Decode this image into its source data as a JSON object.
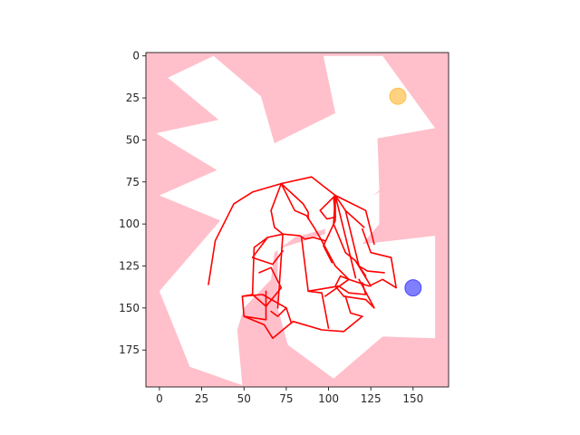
{
  "chart_data": {
    "type": "scatter",
    "title": "",
    "xlabel": "",
    "ylabel": "",
    "xlim": [
      -8,
      171
    ],
    "ylim": [
      197,
      -2
    ],
    "y_inverted": true,
    "x_ticks": [
      0,
      25,
      50,
      75,
      100,
      125,
      150
    ],
    "y_ticks": [
      0,
      25,
      50,
      75,
      100,
      125,
      150,
      175
    ],
    "grid": false,
    "colors": {
      "obstacle": "#ffc0cb",
      "free_space": "#ffffff",
      "path": "#ff0000",
      "start_marker": "#ffa500",
      "goal_marker": "#0000ff"
    },
    "free_region": [
      [
        32,
        0
      ],
      [
        5,
        13
      ],
      [
        35,
        38
      ],
      [
        -2,
        46
      ],
      [
        34,
        68
      ],
      [
        0,
        83
      ],
      [
        36,
        98
      ],
      [
        0,
        140
      ],
      [
        18,
        185
      ],
      [
        49,
        196
      ],
      [
        46,
        163
      ],
      [
        50,
        150
      ],
      [
        66,
        133
      ],
      [
        68,
        117
      ],
      [
        80,
        108
      ],
      [
        98,
        103
      ],
      [
        110,
        95
      ],
      [
        123,
        86
      ],
      [
        130,
        80
      ],
      [
        129,
        49
      ],
      [
        163,
        43
      ],
      [
        132,
        0
      ],
      [
        97,
        0
      ],
      [
        104,
        34
      ],
      [
        68,
        52
      ],
      [
        60,
        24
      ]
    ],
    "free_region_lower": [
      [
        70,
        115
      ],
      [
        98,
        106
      ],
      [
        120,
        112
      ],
      [
        163,
        107
      ],
      [
        163,
        168
      ],
      [
        132,
        167
      ],
      [
        103,
        192
      ],
      [
        76,
        172
      ],
      [
        70,
        150
      ]
    ],
    "free_region_notch": [
      [
        98,
        103
      ],
      [
        112,
        93
      ],
      [
        125,
        84
      ],
      [
        130,
        81
      ],
      [
        130,
        100
      ],
      [
        120,
        112
      ],
      [
        98,
        106
      ]
    ],
    "path_segments": [
      [
        [
          72,
          76
        ],
        [
          85,
          88
        ],
        [
          88,
          93
        ],
        [
          88,
          97
        ]
      ],
      [
        [
          72,
          76
        ],
        [
          77,
          86
        ],
        [
          80,
          92
        ],
        [
          87,
          95
        ],
        [
          92,
          103
        ],
        [
          96,
          110
        ]
      ],
      [
        [
          72,
          76
        ],
        [
          55,
          81
        ],
        [
          44,
          88
        ],
        [
          33,
          110
        ],
        [
          29,
          136
        ]
      ],
      [
        [
          72,
          76
        ],
        [
          66,
          92
        ],
        [
          68,
          102
        ],
        [
          73,
          106
        ],
        [
          70,
          150
        ]
      ],
      [
        [
          72,
          76
        ],
        [
          90,
          72
        ],
        [
          104,
          83
        ],
        [
          122,
          92
        ],
        [
          127,
          112
        ]
      ],
      [
        [
          104,
          83
        ],
        [
          95,
          92
        ],
        [
          99,
          97
        ],
        [
          104,
          96
        ],
        [
          103,
          84
        ]
      ],
      [
        [
          104,
          83
        ],
        [
          104,
          98
        ],
        [
          97,
          113
        ],
        [
          102,
          123
        ]
      ],
      [
        [
          104,
          83
        ],
        [
          103,
          100
        ],
        [
          110,
          117
        ],
        [
          116,
          122
        ],
        [
          125,
          137
        ]
      ],
      [
        [
          104,
          83
        ],
        [
          110,
          92
        ],
        [
          121,
          102
        ]
      ],
      [
        [
          104,
          83
        ],
        [
          116,
          132
        ]
      ],
      [
        [
          110,
          92
        ],
        [
          118,
          125
        ],
        [
          123,
          128
        ],
        [
          133,
          129
        ]
      ],
      [
        [
          116,
          122
        ],
        [
          122,
          131
        ]
      ],
      [
        [
          96,
          110
        ],
        [
          104,
          125
        ],
        [
          112,
          133
        ],
        [
          98,
          143
        ]
      ],
      [
        [
          73,
          106
        ],
        [
          83,
          107
        ],
        [
          86,
          109
        ],
        [
          91,
          108
        ],
        [
          98,
          110
        ]
      ],
      [
        [
          73,
          106
        ],
        [
          64,
          108
        ],
        [
          56,
          114
        ],
        [
          55,
          142
        ],
        [
          63,
          149
        ],
        [
          72,
          138
        ],
        [
          66,
          126
        ],
        [
          59,
          129
        ]
      ],
      [
        [
          64,
          108
        ],
        [
          55,
          120
        ],
        [
          67,
          124
        ],
        [
          73,
          116
        ]
      ],
      [
        [
          55,
          142
        ],
        [
          49,
          143
        ],
        [
          50,
          155
        ],
        [
          62,
          160
        ],
        [
          67,
          168
        ],
        [
          79,
          158
        ],
        [
          96,
          163
        ],
        [
          109,
          164
        ],
        [
          120,
          155
        ]
      ],
      [
        [
          50,
          155
        ],
        [
          63,
          157
        ],
        [
          63,
          140
        ]
      ],
      [
        [
          49,
          143
        ],
        [
          61,
          142
        ],
        [
          75,
          150
        ]
      ],
      [
        [
          75,
          150
        ],
        [
          78,
          159
        ]
      ],
      [
        [
          88,
          140
        ],
        [
          84,
          108
        ]
      ],
      [
        [
          88,
          140
        ],
        [
          106,
          137
        ],
        [
          112,
          141
        ],
        [
          122,
          142
        ],
        [
          120,
          135
        ]
      ],
      [
        [
          112,
          133
        ],
        [
          107,
          131
        ],
        [
          104,
          137
        ],
        [
          109,
          143
        ]
      ],
      [
        [
          109,
          143
        ],
        [
          122,
          145
        ],
        [
          127,
          150
        ],
        [
          118,
          133
        ]
      ],
      [
        [
          112,
          133
        ],
        [
          124,
          137
        ],
        [
          132,
          133
        ],
        [
          140,
          138
        ],
        [
          137,
          120
        ]
      ],
      [
        [
          137,
          120
        ],
        [
          125,
          117
        ],
        [
          120,
          103
        ]
      ],
      [
        [
          75,
          150
        ],
        [
          70,
          155
        ],
        [
          66,
          152
        ]
      ],
      [
        [
          120,
          155
        ],
        [
          113,
          153
        ],
        [
          110,
          143
        ]
      ],
      [
        [
          88,
          140
        ],
        [
          96,
          141
        ]
      ],
      [
        [
          96,
          141
        ],
        [
          100,
          162
        ]
      ]
    ],
    "markers": [
      {
        "role": "start",
        "x": 141,
        "y": 24
      },
      {
        "role": "goal",
        "x": 150,
        "y": 138
      }
    ]
  }
}
